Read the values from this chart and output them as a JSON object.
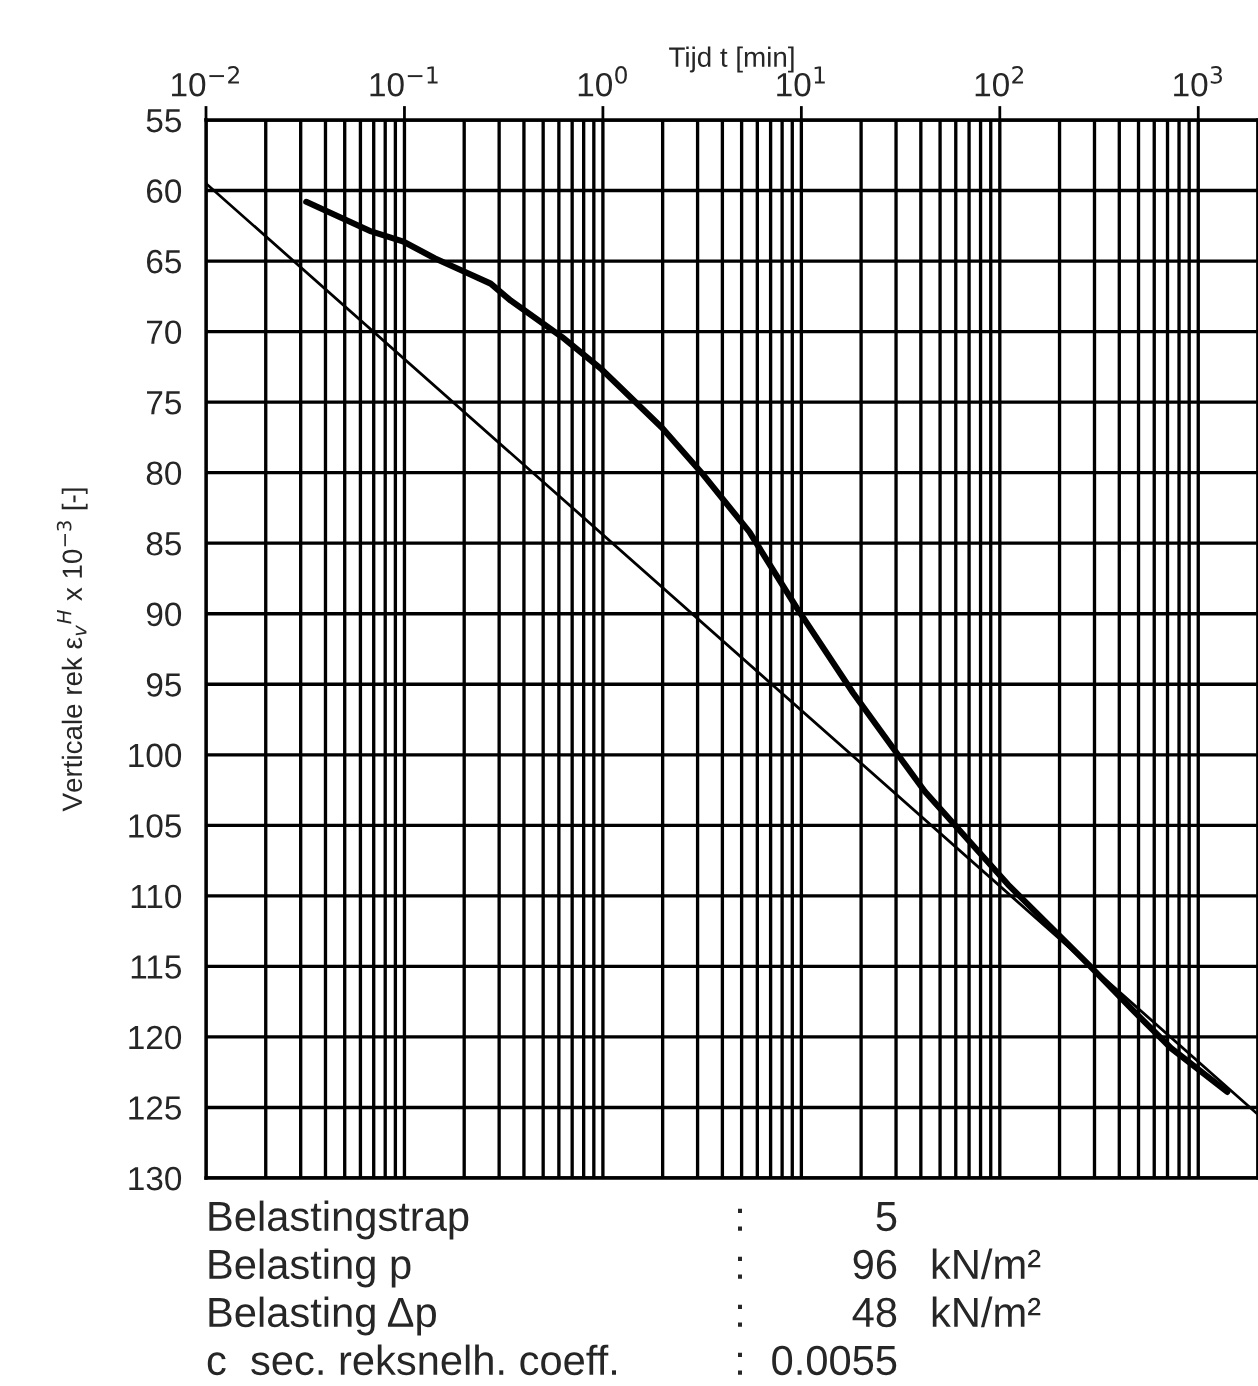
{
  "chart_data": {
    "type": "line",
    "xlabel": "Tijd t [min]",
    "ylabel": "Verticale rek ε$_{v}$$^{H}$ x 10$^{−3}$ [-]",
    "log": "x",
    "grid": true,
    "legend": false,
    "marker": "none",
    "line_style": "solid",
    "xlim": [
      0.01,
      2000
    ],
    "ylim": [
      130,
      55
    ],
    "xticks": [
      {
        "value": 0.01,
        "label": "10$^{−2}$"
      },
      {
        "value": 0.1,
        "label": "10$^{−1}$"
      },
      {
        "value": 1,
        "label": "10$^{0}$"
      },
      {
        "value": 10,
        "label": "10$^{1}$"
      },
      {
        "value": 100,
        "label": "10$^{2}$"
      },
      {
        "value": 1000,
        "label": "10$^{3}$"
      }
    ],
    "yticks": [
      55,
      60,
      65,
      70,
      75,
      80,
      85,
      90,
      95,
      100,
      105,
      110,
      115,
      120,
      125,
      130
    ],
    "series": [
      {
        "color": "#000000",
        "x": [
          0.032,
          0.068,
          0.098,
          0.142,
          0.197,
          0.272,
          0.343,
          0.624,
          0.99,
          1.98,
          3.14,
          5.47,
          9.5,
          18.2,
          28.9,
          41.9,
          110,
          277,
          460,
          730,
          1400
        ],
        "values": [
          60.8,
          62.9,
          63.6,
          64.8,
          65.7,
          66.6,
          67.8,
          70.4,
          72.7,
          76.8,
          80,
          84.2,
          89.6,
          95.6,
          99.5,
          102.6,
          109.2,
          114.8,
          118,
          120.8,
          123.9
        ]
      },
      {
        "color": "#000000",
        "x": [
          0.01,
          2000
        ],
        "values": [
          59.5,
          125.5
        ]
      }
    ],
    "annotations": [
      "Belastingstrap : 5",
      "Belasting p : 96  kN/m²",
      "Belasting Δp : 48  kN/m²",
      "c  sec. reksnelh. coeff. : 0.0055"
    ]
  }
}
